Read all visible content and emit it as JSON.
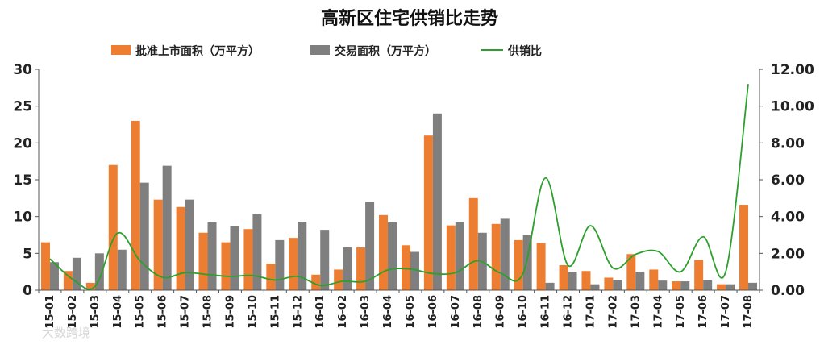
{
  "chart_data": {
    "type": "bar",
    "title": "高新区住宅供销比走势",
    "categories": [
      "15-01",
      "15-02",
      "15-03",
      "15-04",
      "15-05",
      "15-06",
      "15-07",
      "15-08",
      "15-09",
      "15-10",
      "15-11",
      "15-12",
      "16-01",
      "16-02",
      "16-03",
      "16-04",
      "16-05",
      "16-06",
      "16-07",
      "16-08",
      "16-09",
      "16-10",
      "16-11",
      "16-12",
      "17-01",
      "17-02",
      "17-03",
      "17-04",
      "17-05",
      "17-06",
      "17-07",
      "17-08"
    ],
    "series": [
      {
        "name": "批准上市面积（万平方）",
        "type": "bar",
        "axis": "left",
        "color": "#ED7D31",
        "values": [
          6.5,
          2.6,
          1.0,
          17.0,
          23.0,
          12.3,
          11.3,
          7.8,
          6.5,
          8.3,
          3.6,
          7.1,
          2.1,
          2.8,
          5.8,
          10.2,
          6.1,
          21.0,
          8.8,
          12.5,
          9.0,
          6.8,
          6.4,
          3.4,
          2.6,
          1.7,
          4.9,
          2.8,
          1.2,
          4.1,
          0.8,
          11.6
        ]
      },
      {
        "name": "交易面积（万平方）",
        "type": "bar",
        "axis": "left",
        "color": "#7F7F7F",
        "values": [
          3.8,
          4.4,
          5.0,
          5.5,
          14.6,
          16.9,
          12.3,
          9.2,
          8.7,
          10.3,
          6.8,
          9.3,
          8.2,
          5.8,
          12.0,
          9.2,
          5.2,
          24.0,
          9.2,
          7.8,
          9.7,
          7.5,
          1.0,
          2.5,
          0.8,
          1.4,
          2.5,
          1.3,
          1.2,
          1.4,
          0.8,
          1.0
        ]
      },
      {
        "name": "供销比",
        "type": "line",
        "axis": "right",
        "color": "#2CA02C",
        "values": [
          1.7,
          0.6,
          0.2,
          3.1,
          1.6,
          0.7,
          0.95,
          0.85,
          0.75,
          0.8,
          0.55,
          0.75,
          0.26,
          0.48,
          0.48,
          1.1,
          1.15,
          0.9,
          0.95,
          1.6,
          0.93,
          0.9,
          6.1,
          1.35,
          3.5,
          1.2,
          1.95,
          2.1,
          1.0,
          2.9,
          1.0,
          11.2
        ]
      }
    ],
    "y_left": {
      "min": 0,
      "max": 30,
      "ticks": [
        "0",
        "5",
        "10",
        "15",
        "20",
        "25",
        "30"
      ]
    },
    "y_right": {
      "min": 0,
      "max": 12,
      "ticks": [
        "0.00",
        "2.00",
        "4.00",
        "6.00",
        "8.00",
        "10.00",
        "12.00"
      ]
    },
    "grid": false,
    "legend": "top"
  },
  "watermark": "大数跨境"
}
